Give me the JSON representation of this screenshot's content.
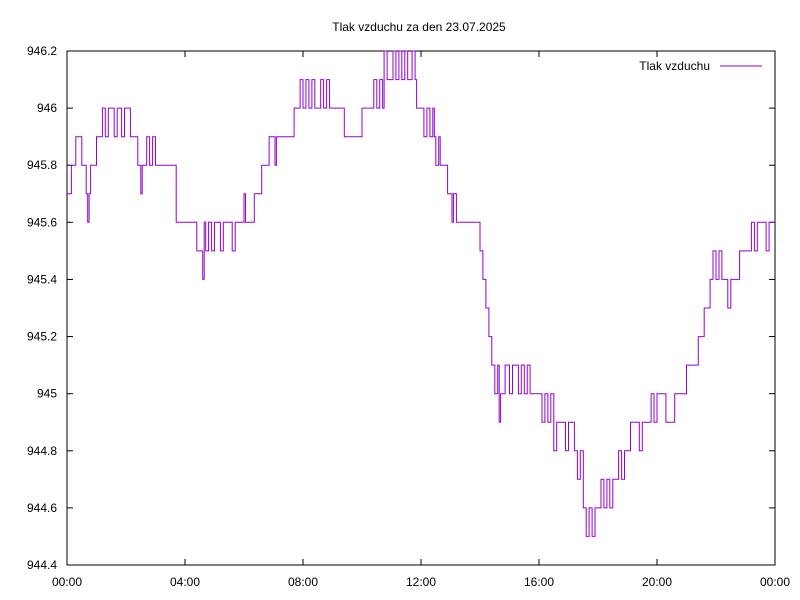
{
  "chart_data": {
    "type": "line",
    "title": "Tlak vzduchu za den 23.07.2025",
    "xlabel": "",
    "ylabel": "",
    "xlim": [
      0,
      24
    ],
    "ylim": [
      944.4,
      946.2
    ],
    "x_ticks": [
      {
        "value": 0,
        "label": "00:00"
      },
      {
        "value": 4,
        "label": "04:00"
      },
      {
        "value": 8,
        "label": "08:00"
      },
      {
        "value": 12,
        "label": "12:00"
      },
      {
        "value": 16,
        "label": "16:00"
      },
      {
        "value": 20,
        "label": "20:00"
      },
      {
        "value": 24,
        "label": "00:00"
      }
    ],
    "y_ticks": [
      {
        "value": 944.4,
        "label": "944.4"
      },
      {
        "value": 944.6,
        "label": "944.6"
      },
      {
        "value": 944.8,
        "label": "944.8"
      },
      {
        "value": 945.0,
        "label": "945"
      },
      {
        "value": 945.2,
        "label": "945.2"
      },
      {
        "value": 945.4,
        "label": "945.4"
      },
      {
        "value": 945.6,
        "label": "945.6"
      },
      {
        "value": 945.8,
        "label": "945.8"
      },
      {
        "value": 946.0,
        "label": "946"
      },
      {
        "value": 946.2,
        "label": "946.2"
      }
    ],
    "grid": false,
    "legend_position": "top-right",
    "series": [
      {
        "name": "Tlak vzduchu",
        "color": "#9400d3",
        "points": [
          [
            0.0,
            945.7
          ],
          [
            0.1,
            945.7
          ],
          [
            0.15,
            945.8
          ],
          [
            0.25,
            945.8
          ],
          [
            0.3,
            945.9
          ],
          [
            0.45,
            945.9
          ],
          [
            0.5,
            945.8
          ],
          [
            0.6,
            945.8
          ],
          [
            0.65,
            945.7
          ],
          [
            0.7,
            945.6
          ],
          [
            0.75,
            945.7
          ],
          [
            0.8,
            945.8
          ],
          [
            0.95,
            945.8
          ],
          [
            1.0,
            945.9
          ],
          [
            1.15,
            945.9
          ],
          [
            1.2,
            946.0
          ],
          [
            1.3,
            945.9
          ],
          [
            1.4,
            946.0
          ],
          [
            1.6,
            945.9
          ],
          [
            1.7,
            946.0
          ],
          [
            1.85,
            945.9
          ],
          [
            1.95,
            946.0
          ],
          [
            2.1,
            946.0
          ],
          [
            2.15,
            945.9
          ],
          [
            2.3,
            945.9
          ],
          [
            2.4,
            945.8
          ],
          [
            2.5,
            945.7
          ],
          [
            2.55,
            945.8
          ],
          [
            2.65,
            945.8
          ],
          [
            2.7,
            945.9
          ],
          [
            2.8,
            945.8
          ],
          [
            2.9,
            945.9
          ],
          [
            3.0,
            945.8
          ],
          [
            3.6,
            945.8
          ],
          [
            3.7,
            945.6
          ],
          [
            4.3,
            945.6
          ],
          [
            4.4,
            945.5
          ],
          [
            4.5,
            945.5
          ],
          [
            4.6,
            945.4
          ],
          [
            4.65,
            945.6
          ],
          [
            4.7,
            945.5
          ],
          [
            4.8,
            945.6
          ],
          [
            4.9,
            945.5
          ],
          [
            5.0,
            945.6
          ],
          [
            5.2,
            945.5
          ],
          [
            5.3,
            945.6
          ],
          [
            5.5,
            945.6
          ],
          [
            5.6,
            945.5
          ],
          [
            5.7,
            945.6
          ],
          [
            5.95,
            945.6
          ],
          [
            6.0,
            945.7
          ],
          [
            6.05,
            945.6
          ],
          [
            6.3,
            945.6
          ],
          [
            6.35,
            945.7
          ],
          [
            6.55,
            945.7
          ],
          [
            6.6,
            945.8
          ],
          [
            6.8,
            945.8
          ],
          [
            6.85,
            945.9
          ],
          [
            7.0,
            945.9
          ],
          [
            7.05,
            945.8
          ],
          [
            7.1,
            945.9
          ],
          [
            7.6,
            945.9
          ],
          [
            7.7,
            946.0
          ],
          [
            7.85,
            946.0
          ],
          [
            7.9,
            946.1
          ],
          [
            8.0,
            946.0
          ],
          [
            8.1,
            946.1
          ],
          [
            8.2,
            946.0
          ],
          [
            8.3,
            946.1
          ],
          [
            8.4,
            946.0
          ],
          [
            8.5,
            946.0
          ],
          [
            8.6,
            946.1
          ],
          [
            8.7,
            946.0
          ],
          [
            8.8,
            946.1
          ],
          [
            8.9,
            946.0
          ],
          [
            9.3,
            946.0
          ],
          [
            9.4,
            945.9
          ],
          [
            9.9,
            945.9
          ],
          [
            10.0,
            946.0
          ],
          [
            10.3,
            946.0
          ],
          [
            10.4,
            946.1
          ],
          [
            10.5,
            946.0
          ],
          [
            10.6,
            946.1
          ],
          [
            10.7,
            946.0
          ],
          [
            10.75,
            946.2
          ],
          [
            10.85,
            946.1
          ],
          [
            11.0,
            946.1
          ],
          [
            11.05,
            946.2
          ],
          [
            11.15,
            946.1
          ],
          [
            11.25,
            946.2
          ],
          [
            11.35,
            946.1
          ],
          [
            11.45,
            946.2
          ],
          [
            11.55,
            946.1
          ],
          [
            11.7,
            946.2
          ],
          [
            11.8,
            946.1
          ],
          [
            11.85,
            946.0
          ],
          [
            12.0,
            946.0
          ],
          [
            12.1,
            945.9
          ],
          [
            12.2,
            946.0
          ],
          [
            12.3,
            945.9
          ],
          [
            12.4,
            946.0
          ],
          [
            12.45,
            945.9
          ],
          [
            12.5,
            945.8
          ],
          [
            12.6,
            945.9
          ],
          [
            12.65,
            945.8
          ],
          [
            12.8,
            945.8
          ],
          [
            12.9,
            945.7
          ],
          [
            13.0,
            945.7
          ],
          [
            13.05,
            945.6
          ],
          [
            13.1,
            945.7
          ],
          [
            13.2,
            945.6
          ],
          [
            13.35,
            945.6
          ],
          [
            13.4,
            945.6
          ],
          [
            13.5,
            945.6
          ],
          [
            13.9,
            945.6
          ],
          [
            14.0,
            945.5
          ],
          [
            14.1,
            945.4
          ],
          [
            14.2,
            945.3
          ],
          [
            14.3,
            945.2
          ],
          [
            14.4,
            945.1
          ],
          [
            14.5,
            945.0
          ],
          [
            14.6,
            945.1
          ],
          [
            14.65,
            944.9
          ],
          [
            14.7,
            945.0
          ],
          [
            14.8,
            945.0
          ],
          [
            14.85,
            945.1
          ],
          [
            15.0,
            945.0
          ],
          [
            15.1,
            945.1
          ],
          [
            15.3,
            945.0
          ],
          [
            15.4,
            945.1
          ],
          [
            15.5,
            945.0
          ],
          [
            15.6,
            945.1
          ],
          [
            15.7,
            945.0
          ],
          [
            16.0,
            945.0
          ],
          [
            16.1,
            944.9
          ],
          [
            16.2,
            945.0
          ],
          [
            16.3,
            944.9
          ],
          [
            16.4,
            945.0
          ],
          [
            16.5,
            944.8
          ],
          [
            16.6,
            944.9
          ],
          [
            16.8,
            944.9
          ],
          [
            16.9,
            944.8
          ],
          [
            17.0,
            944.9
          ],
          [
            17.15,
            944.9
          ],
          [
            17.2,
            944.8
          ],
          [
            17.3,
            944.7
          ],
          [
            17.4,
            944.8
          ],
          [
            17.5,
            944.6
          ],
          [
            17.6,
            944.5
          ],
          [
            17.7,
            944.6
          ],
          [
            17.8,
            944.5
          ],
          [
            17.9,
            944.6
          ],
          [
            18.0,
            944.6
          ],
          [
            18.1,
            944.7
          ],
          [
            18.2,
            944.6
          ],
          [
            18.3,
            944.7
          ],
          [
            18.4,
            944.6
          ],
          [
            18.5,
            944.7
          ],
          [
            18.6,
            944.7
          ],
          [
            18.7,
            944.8
          ],
          [
            18.8,
            944.7
          ],
          [
            18.9,
            944.8
          ],
          [
            19.0,
            944.8
          ],
          [
            19.1,
            944.9
          ],
          [
            19.3,
            944.9
          ],
          [
            19.4,
            944.8
          ],
          [
            19.5,
            944.9
          ],
          [
            19.7,
            944.9
          ],
          [
            19.8,
            945.0
          ],
          [
            19.9,
            944.9
          ],
          [
            20.0,
            945.0
          ],
          [
            20.2,
            945.0
          ],
          [
            20.3,
            944.9
          ],
          [
            20.5,
            944.9
          ],
          [
            20.6,
            945.0
          ],
          [
            20.9,
            945.0
          ],
          [
            21.0,
            945.1
          ],
          [
            21.3,
            945.1
          ],
          [
            21.4,
            945.2
          ],
          [
            21.5,
            945.2
          ],
          [
            21.6,
            945.3
          ],
          [
            21.7,
            945.3
          ],
          [
            21.8,
            945.4
          ],
          [
            21.9,
            945.5
          ],
          [
            22.0,
            945.4
          ],
          [
            22.1,
            945.5
          ],
          [
            22.2,
            945.4
          ],
          [
            22.3,
            945.4
          ],
          [
            22.4,
            945.3
          ],
          [
            22.5,
            945.4
          ],
          [
            22.7,
            945.4
          ],
          [
            22.8,
            945.5
          ],
          [
            23.0,
            945.5
          ],
          [
            23.2,
            945.6
          ],
          [
            23.3,
            945.5
          ],
          [
            23.4,
            945.6
          ],
          [
            23.6,
            945.6
          ],
          [
            23.7,
            945.5
          ],
          [
            23.8,
            945.6
          ],
          [
            23.9,
            945.6
          ],
          [
            24.0,
            945.6
          ]
        ]
      }
    ]
  }
}
